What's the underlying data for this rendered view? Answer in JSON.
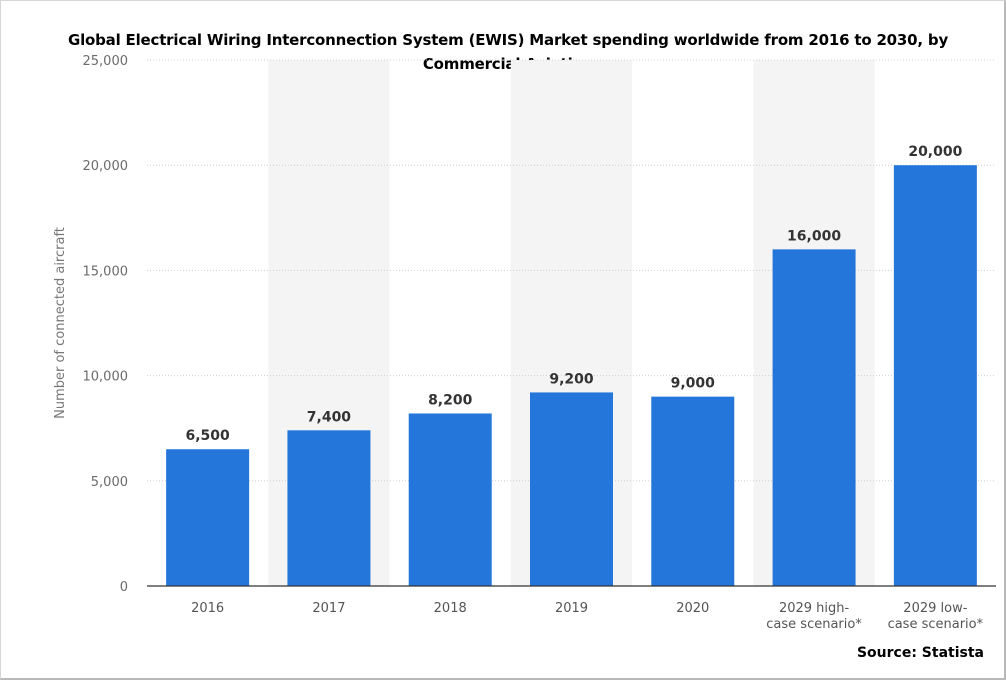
{
  "chart_data": {
    "type": "bar",
    "title": "Global Electrical Wiring Interconnection System (EWIS) Market spending worldwide from 2016 to 2030, by Commercial Aviation",
    "ylabel": "Number of connected aircraft",
    "xlabel": "",
    "categories": [
      "2016",
      "2017",
      "2018",
      "2019",
      "2020",
      "2029 high-\ncase scenario*",
      "2029 low-\ncase scenario*"
    ],
    "values": [
      6500,
      7400,
      8200,
      9200,
      9000,
      16000,
      20000
    ],
    "value_labels": [
      "6,500",
      "7,400",
      "8,200",
      "9,200",
      "9,000",
      "16,000",
      "20,000"
    ],
    "yticks": [
      0,
      5000,
      10000,
      15000,
      20000,
      25000
    ],
    "ytick_labels": [
      "0",
      "5,000",
      "10,000",
      "15,000",
      "20,000",
      "25,000"
    ],
    "ylim": [
      0,
      25000
    ],
    "bar_color": "#2576db",
    "alternate_band_color": "#f4f4f4",
    "grid": true,
    "legend": "none"
  },
  "source": "Source: Statista"
}
